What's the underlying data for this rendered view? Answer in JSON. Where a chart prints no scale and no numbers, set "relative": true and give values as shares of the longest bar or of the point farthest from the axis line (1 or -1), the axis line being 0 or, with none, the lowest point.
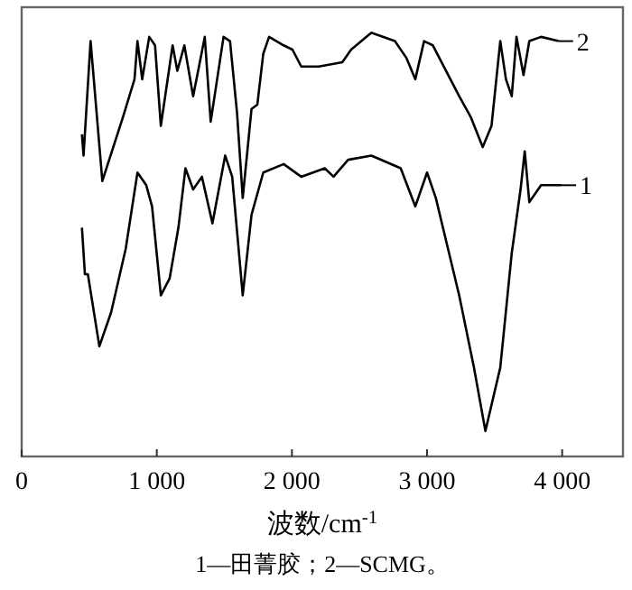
{
  "chart_data": {
    "type": "line",
    "relative": true,
    "xlabel": "波数/cm$^{-1}$",
    "annotations": [
      "1—田菁胶；2—SCMG。"
    ],
    "xlim": [
      0,
      4450
    ],
    "xticks": [
      0,
      {
        "value": 1000,
        "label": "1 000"
      },
      {
        "value": 2000,
        "label": "2 000"
      },
      {
        "value": 3000,
        "label": "3 000"
      },
      {
        "value": 4000,
        "label": "4 000"
      }
    ],
    "legend": "right",
    "grid": false,
    "line_style": "solid",
    "series": [
      {
        "name": "1",
        "color": "#000000",
        "x": [
          446,
          468,
          490,
          575,
          662,
          770,
          857,
          922,
          965,
          1030,
          1095,
          1160,
          1212,
          1269,
          1334,
          1412,
          1506,
          1558,
          1636,
          1701,
          1788,
          1939,
          2069,
          2243,
          2308,
          2416,
          2588,
          2805,
          2913,
          3000,
          3065,
          3238,
          3347,
          3432,
          3542,
          3627,
          3692,
          3723,
          3757,
          3844,
          3996
        ],
        "values": [
          0.54,
          0.43,
          0.43,
          0.26,
          0.34,
          0.49,
          0.67,
          0.64,
          0.59,
          0.38,
          0.42,
          0.54,
          0.68,
          0.63,
          0.66,
          0.55,
          0.71,
          0.66,
          0.38,
          0.57,
          0.67,
          0.69,
          0.66,
          0.68,
          0.66,
          0.7,
          0.71,
          0.68,
          0.59,
          0.67,
          0.61,
          0.38,
          0.21,
          0.06,
          0.21,
          0.48,
          0.63,
          0.72,
          0.6,
          0.64,
          0.64
        ]
      },
      {
        "name": "2",
        "color": "#000000",
        "x": [
          446,
          458,
          510,
          597,
          749,
          835,
          857,
          892,
          944,
          987,
          1030,
          1117,
          1152,
          1204,
          1269,
          1355,
          1399,
          1494,
          1542,
          1594,
          1636,
          1701,
          1744,
          1788,
          1831,
          1939,
          2004,
          2069,
          2199,
          2373,
          2438,
          2588,
          2762,
          2848,
          2913,
          2978,
          3043,
          3238,
          3325,
          3412,
          3477,
          3542,
          3584,
          3627,
          3662,
          3714,
          3757,
          3844,
          3974
        ],
        "values": [
          0.76,
          0.71,
          0.98,
          0.65,
          0.8,
          0.89,
          0.98,
          0.89,
          0.99,
          0.97,
          0.78,
          0.97,
          0.91,
          0.97,
          0.85,
          0.99,
          0.79,
          0.99,
          0.98,
          0.81,
          0.61,
          0.82,
          0.83,
          0.95,
          0.99,
          0.97,
          0.96,
          0.92,
          0.92,
          0.93,
          0.96,
          1.0,
          0.98,
          0.94,
          0.89,
          0.98,
          0.97,
          0.85,
          0.8,
          0.73,
          0.78,
          0.98,
          0.89,
          0.85,
          0.99,
          0.9,
          0.98,
          0.99,
          0.98
        ]
      }
    ]
  }
}
